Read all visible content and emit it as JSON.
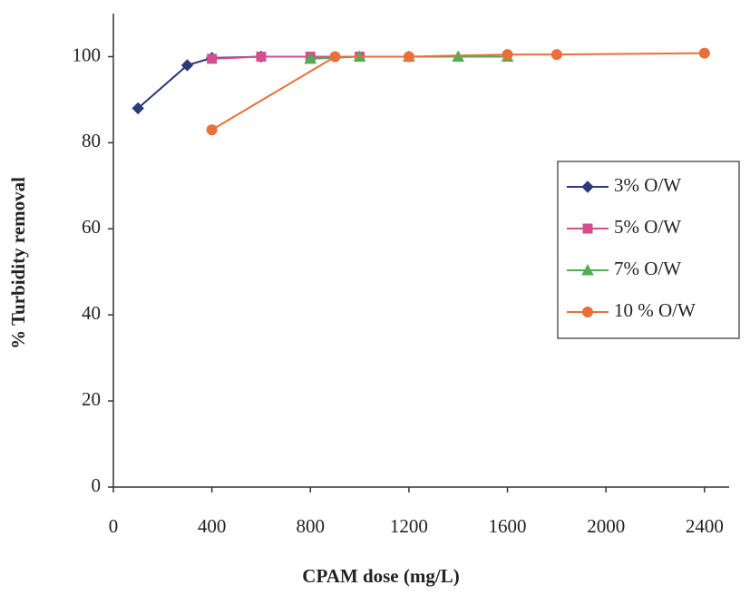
{
  "chart_data": {
    "type": "line",
    "x_label": "CPAM dose (mg/L)",
    "y_label": "% Turbidity removal",
    "xlim": [
      0,
      2500
    ],
    "ylim": [
      0,
      110
    ],
    "xticks": [
      0,
      400,
      800,
      1200,
      1600,
      2000,
      2400
    ],
    "yticks": [
      0,
      20,
      40,
      60,
      80,
      100
    ],
    "legend": "right",
    "series": [
      {
        "name": "3% O/W",
        "color": "#2b3a78",
        "marker": "diamond",
        "x": [
          100,
          300,
          400,
          600
        ],
        "values": [
          88,
          98,
          99.7,
          100
        ]
      },
      {
        "name": "5% O/W",
        "color": "#d24e8c",
        "marker": "square",
        "x": [
          400,
          600,
          800,
          1000
        ],
        "values": [
          99.5,
          100,
          100,
          100
        ]
      },
      {
        "name": "7% O/W",
        "color": "#4fae55",
        "marker": "triangle",
        "x": [
          800,
          1000,
          1200,
          1400,
          1600
        ],
        "values": [
          99.5,
          100,
          100,
          100,
          100
        ]
      },
      {
        "name": "10 % O/W",
        "color": "#e8703a",
        "marker": "circle",
        "x": [
          400,
          900,
          1200,
          1600,
          1800,
          2400
        ],
        "values": [
          83,
          100,
          100,
          100.5,
          100.5,
          100.8
        ]
      }
    ]
  }
}
